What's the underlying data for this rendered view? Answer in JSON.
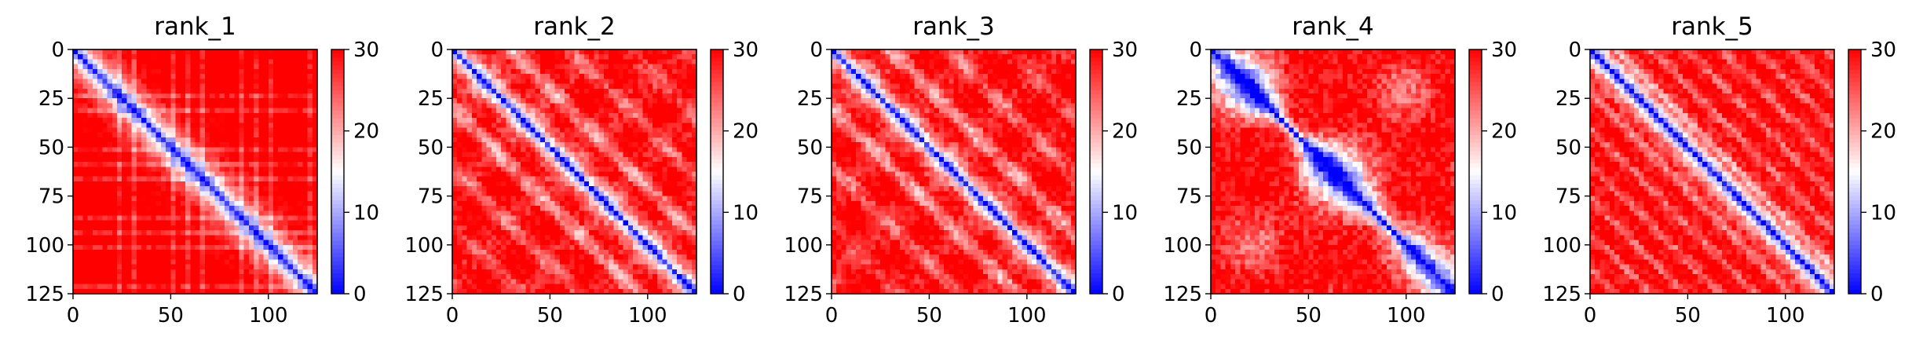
{
  "chart_data": [
    {
      "type": "heatmap",
      "title": "rank_1",
      "x_ticks": [
        "0",
        "50",
        "100"
      ],
      "y_ticks": [
        "0",
        "25",
        "50",
        "75",
        "100",
        "125"
      ],
      "xlim": [
        0,
        125
      ],
      "ylim": [
        125,
        0
      ],
      "colorbar": {
        "ticks": [
          "0",
          "10",
          "20",
          "30"
        ],
        "range": [
          0,
          30
        ],
        "colormap": "bwr"
      },
      "pattern": {
        "diagonal": true,
        "off_diagonal_bands": 0,
        "texture": "mostly red with light grid stripes"
      }
    },
    {
      "type": "heatmap",
      "title": "rank_2",
      "x_ticks": [
        "0",
        "50",
        "100"
      ],
      "y_ticks": [
        "0",
        "25",
        "50",
        "75",
        "100",
        "125"
      ],
      "xlim": [
        0,
        125
      ],
      "ylim": [
        125,
        0
      ],
      "colorbar": {
        "ticks": [
          "0",
          "10",
          "20",
          "30"
        ],
        "range": [
          0,
          30
        ],
        "colormap": "bwr"
      },
      "pattern": {
        "diagonal": true,
        "off_diagonal_bands": 2,
        "texture": "diagonal red/white stripes"
      }
    },
    {
      "type": "heatmap",
      "title": "rank_3",
      "x_ticks": [
        "0",
        "50",
        "100"
      ],
      "y_ticks": [
        "0",
        "25",
        "50",
        "75",
        "100",
        "125"
      ],
      "xlim": [
        0,
        125
      ],
      "ylim": [
        125,
        0
      ],
      "colorbar": {
        "ticks": [
          "0",
          "10",
          "20",
          "30"
        ],
        "range": [
          0,
          30
        ],
        "colormap": "bwr"
      },
      "pattern": {
        "diagonal": true,
        "off_diagonal_bands": 2,
        "texture": "diagonal red/white stripes"
      }
    },
    {
      "type": "heatmap",
      "title": "rank_4",
      "x_ticks": [
        "0",
        "50",
        "100"
      ],
      "y_ticks": [
        "0",
        "25",
        "50",
        "75",
        "100",
        "125"
      ],
      "xlim": [
        0,
        125
      ],
      "ylim": [
        125,
        0
      ],
      "colorbar": {
        "ticks": [
          "0",
          "10",
          "20",
          "30"
        ],
        "range": [
          0,
          30
        ],
        "colormap": "bwr"
      },
      "pattern": {
        "diagonal": true,
        "diagonal_width": "wide, blobby",
        "texture": "red with pale patches"
      }
    },
    {
      "type": "heatmap",
      "title": "rank_5",
      "x_ticks": [
        "0",
        "50",
        "100"
      ],
      "y_ticks": [
        "0",
        "25",
        "50",
        "75",
        "100",
        "125"
      ],
      "xlim": [
        0,
        125
      ],
      "ylim": [
        125,
        0
      ],
      "colorbar": {
        "ticks": [
          "0",
          "10",
          "20",
          "30"
        ],
        "range": [
          0,
          30
        ],
        "colormap": "bwr"
      },
      "pattern": {
        "diagonal": true,
        "off_diagonal_bands": 0,
        "texture": "red with light diagonal striations"
      }
    }
  ]
}
